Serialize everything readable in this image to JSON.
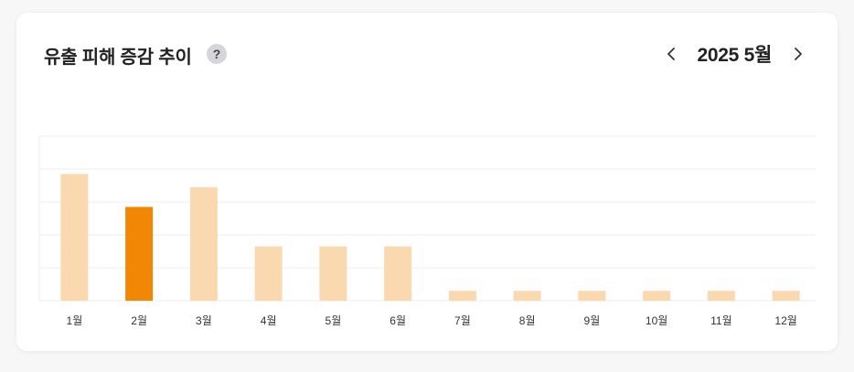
{
  "header": {
    "title": "유출 피해 증감 추이",
    "help_symbol": "?",
    "period": "2025 5월",
    "prev_icon": "chevron-left-icon",
    "next_icon": "chevron-right-icon"
  },
  "chart_data": {
    "type": "bar",
    "categories": [
      "1월",
      "2월",
      "3월",
      "4월",
      "5월",
      "6월",
      "7월",
      "8월",
      "9월",
      "10월",
      "11월",
      "12월"
    ],
    "values": [
      3.85,
      2.85,
      3.45,
      1.65,
      1.65,
      1.65,
      0.3,
      0.3,
      0.3,
      0.3,
      0.3,
      0.3
    ],
    "highlight_index": 1,
    "ylim": [
      0,
      5
    ],
    "grid": true,
    "colors": {
      "bar": "#fbd9b0",
      "highlight": "#f28705",
      "grid": "#ececec"
    }
  }
}
